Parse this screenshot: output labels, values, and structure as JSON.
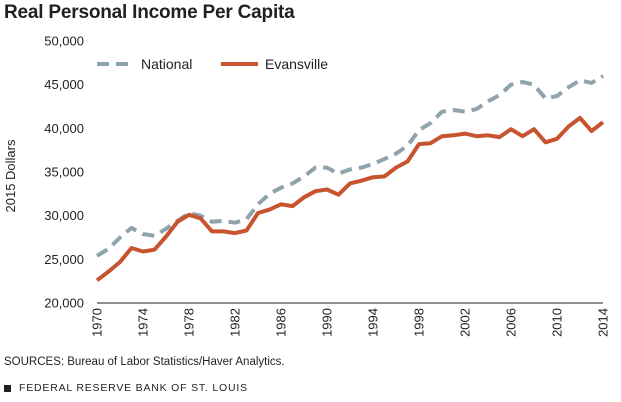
{
  "chart_data": {
    "type": "line",
    "title": "Real Personal Income Per Capita",
    "ylabel": "2015 Dollars",
    "xlabel": "",
    "ylim": [
      20000,
      50000
    ],
    "xlim": [
      1970,
      2014
    ],
    "y_ticks": [
      20000,
      25000,
      30000,
      35000,
      40000,
      45000,
      50000
    ],
    "y_tick_labels": [
      "20,000",
      "25,000",
      "30,000",
      "35,000",
      "40,000",
      "45,000",
      "50,000"
    ],
    "x_ticks": [
      1970,
      1974,
      1978,
      1982,
      1986,
      1990,
      1994,
      1998,
      2002,
      2006,
      2010,
      2014
    ],
    "x_tick_labels": [
      "1970",
      "1974",
      "1978",
      "1982",
      "1986",
      "1990",
      "1994",
      "1998",
      "2002",
      "2006",
      "2010",
      "2014"
    ],
    "grid": false,
    "legend_position": "top-left",
    "x": [
      1970,
      1971,
      1972,
      1973,
      1974,
      1975,
      1976,
      1977,
      1978,
      1979,
      1980,
      1981,
      1982,
      1983,
      1984,
      1985,
      1986,
      1987,
      1988,
      1989,
      1990,
      1991,
      1992,
      1993,
      1994,
      1995,
      1996,
      1997,
      1998,
      1999,
      2000,
      2001,
      2002,
      2003,
      2004,
      2005,
      2006,
      2007,
      2008,
      2009,
      2010,
      2011,
      2012,
      2013,
      2014
    ],
    "series": [
      {
        "name": "National",
        "color": "#8fa3ad",
        "style": "dashed",
        "values": [
          25400,
          26200,
          27500,
          28600,
          27900,
          27700,
          28500,
          29400,
          30300,
          30000,
          29300,
          29400,
          29200,
          29600,
          31300,
          32500,
          33200,
          33700,
          34500,
          35500,
          35500,
          34800,
          35300,
          35500,
          35900,
          36500,
          37100,
          38000,
          39800,
          40600,
          41900,
          42100,
          41900,
          42200,
          43100,
          43800,
          45000,
          45300,
          45000,
          43400,
          43700,
          44700,
          45500,
          45200,
          46000
        ]
      },
      {
        "name": "Evansville",
        "color": "#c8532f",
        "style": "solid",
        "values": [
          22600,
          23600,
          24700,
          26300,
          25900,
          26100,
          27600,
          29300,
          30100,
          29700,
          28200,
          28200,
          28000,
          28300,
          30300,
          30700,
          31300,
          31100,
          32100,
          32800,
          33000,
          32400,
          33700,
          34000,
          34400,
          34500,
          35500,
          36200,
          38200,
          38300,
          39100,
          39200,
          39400,
          39100,
          39200,
          39000,
          39900,
          39100,
          39900,
          38400,
          38800,
          40200,
          41200,
          39700,
          40700
        ]
      }
    ]
  },
  "source_text": "SOURCES: Bureau of Labor Statistics/Haver Analytics.",
  "footer_text": "FEDERAL RESERVE BANK OF ST. LOUIS"
}
